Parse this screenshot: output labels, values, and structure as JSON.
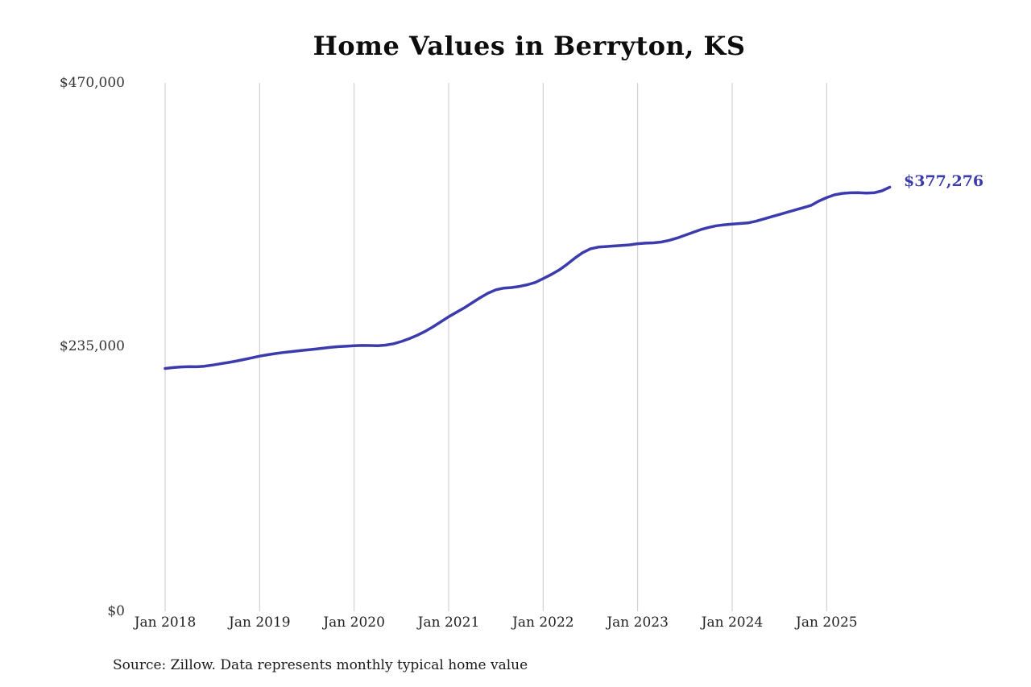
{
  "source_note": "Source: Zillow. Data represents monthly typical home value",
  "chart_data": {
    "type": "line",
    "title": "Home Values in Berryton, KS",
    "series_name": "Monthly typical home value",
    "unit": "USD",
    "x_start": "2018-01",
    "x_end": "2025-09",
    "frequency": "monthly",
    "x_tick_labels": [
      "Jan 2018",
      "Jan 2019",
      "Jan 2020",
      "Jan 2021",
      "Jan 2022",
      "Jan 2023",
      "Jan 2024",
      "Jan 2025"
    ],
    "y_tick_labels": [
      "$470,000",
      "$235,000",
      "$0"
    ],
    "ylim": [
      0,
      470000
    ],
    "grid": "vertical-only",
    "legend": "none",
    "line_color": "#3b3bad",
    "gridline_color": "#c9c9c9",
    "end_label": "$377,276",
    "end_value": 377276,
    "values": [
      216000,
      216800,
      217400,
      217600,
      217500,
      218000,
      219000,
      220200,
      221300,
      222500,
      224000,
      225500,
      227000,
      228200,
      229300,
      230200,
      231000,
      231800,
      232500,
      233200,
      234000,
      234800,
      235400,
      235800,
      236200,
      236500,
      236400,
      236200,
      236800,
      238000,
      240000,
      242500,
      245500,
      249000,
      253000,
      257500,
      262000,
      266000,
      270000,
      274500,
      279000,
      283000,
      286000,
      287500,
      288000,
      289000,
      290500,
      292500,
      296000,
      299500,
      303500,
      308500,
      314000,
      319000,
      322500,
      324000,
      324500,
      325000,
      325500,
      326000,
      327000,
      327500,
      327800,
      328500,
      330000,
      332000,
      334500,
      337000,
      339500,
      341500,
      343000,
      343800,
      344500,
      345000,
      345500,
      347000,
      349000,
      351000,
      353000,
      355000,
      357000,
      359000,
      361000,
      365000,
      368000,
      370500,
      371800,
      372300,
      372400,
      372000,
      372300,
      374000,
      377276
    ]
  }
}
